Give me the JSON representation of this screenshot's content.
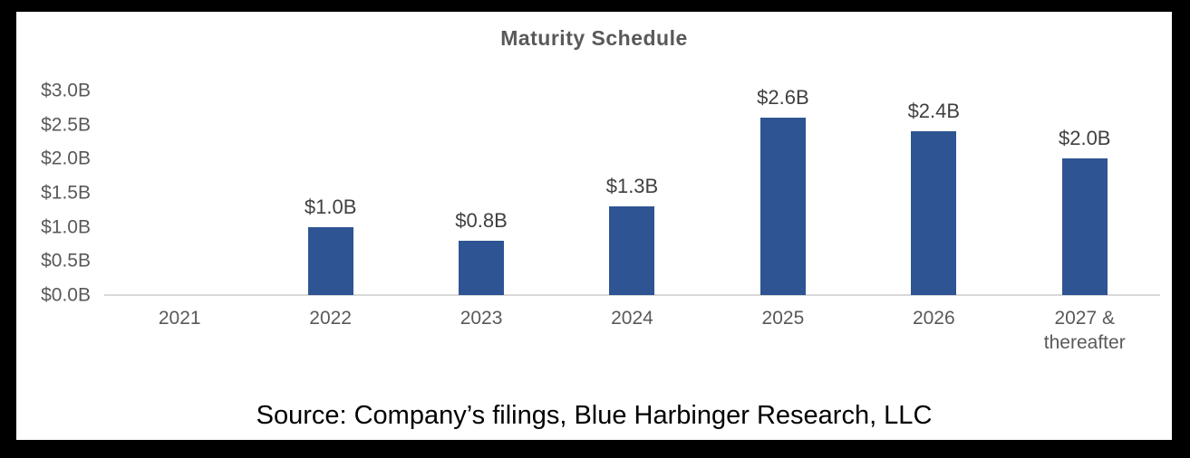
{
  "chart_data": {
    "type": "bar",
    "title": "Maturity Schedule",
    "categories": [
      "2021",
      "2022",
      "2023",
      "2024",
      "2025",
      "2026",
      "2027 &\nthereafter"
    ],
    "values": [
      0,
      1.0,
      0.8,
      1.3,
      2.6,
      2.4,
      2.0
    ],
    "bar_labels": [
      "",
      "$1.0B",
      "$0.8B",
      "$1.3B",
      "$2.6B",
      "$2.4B",
      "$2.0B"
    ],
    "y_ticks": [
      {
        "value": 0.0,
        "label": "$0.0B"
      },
      {
        "value": 0.5,
        "label": "$0.5B"
      },
      {
        "value": 1.0,
        "label": "$1.0B"
      },
      {
        "value": 1.5,
        "label": "$1.5B"
      },
      {
        "value": 2.0,
        "label": "$2.0B"
      },
      {
        "value": 2.5,
        "label": "$2.5B"
      },
      {
        "value": 3.0,
        "label": "$3.0B"
      }
    ],
    "ylim": [
      0,
      3.0
    ],
    "xlabel": "",
    "ylabel": "",
    "grid": false,
    "legend_position": "none",
    "bar_color": "#2E5493",
    "axis_line_color": "#D9D9D9",
    "title_color": "#595959",
    "tick_color": "#595959",
    "data_label_color": "#404040"
  },
  "footer": {
    "source": "Source: Company’s filings, Blue Harbinger Research, LLC"
  },
  "frame": {
    "background": "#000000",
    "panel_background": "#FFFFFF"
  }
}
